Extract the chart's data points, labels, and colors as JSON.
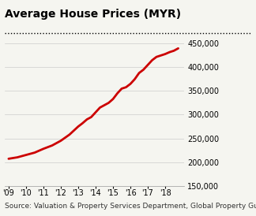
{
  "title": "Average House Prices (MYR)",
  "source": "Source: Valuation & Property Services Department, Global Property Guide",
  "x_labels": [
    "'09",
    "'10",
    "'11",
    "'12",
    "'13",
    "'14",
    "'15",
    "'16",
    "'17",
    "'18"
  ],
  "x_values": [
    2009,
    2009.5,
    2010,
    2010.5,
    2011,
    2011.5,
    2012,
    2012.5,
    2013,
    2013.25,
    2013.5,
    2013.75,
    2014,
    2014.25,
    2014.5,
    2014.75,
    2015,
    2015.25,
    2015.5,
    2015.75,
    2016,
    2016.25,
    2016.5,
    2016.75,
    2017,
    2017.25,
    2017.5,
    2017.75,
    2018,
    2018.25,
    2018.5,
    2018.75
  ],
  "y_values": [
    207000,
    210000,
    215000,
    220000,
    228000,
    235000,
    245000,
    258000,
    275000,
    282000,
    290000,
    295000,
    305000,
    315000,
    320000,
    325000,
    333000,
    345000,
    355000,
    358000,
    365000,
    375000,
    388000,
    395000,
    405000,
    415000,
    422000,
    425000,
    428000,
    432000,
    435000,
    440000
  ],
  "line_color": "#cc0000",
  "line_width": 2.0,
  "ylim": [
    150000,
    460000
  ],
  "yticks": [
    150000,
    200000,
    250000,
    300000,
    350000,
    400000,
    450000
  ],
  "xlim": [
    2008.8,
    2019.1
  ],
  "xtick_positions": [
    2009,
    2010,
    2011,
    2012,
    2013,
    2014,
    2015,
    2016,
    2017,
    2018
  ],
  "background_color": "#f5f5f0",
  "grid_color": "#cccccc",
  "title_fontsize": 10,
  "source_fontsize": 6.5,
  "tick_fontsize": 7
}
